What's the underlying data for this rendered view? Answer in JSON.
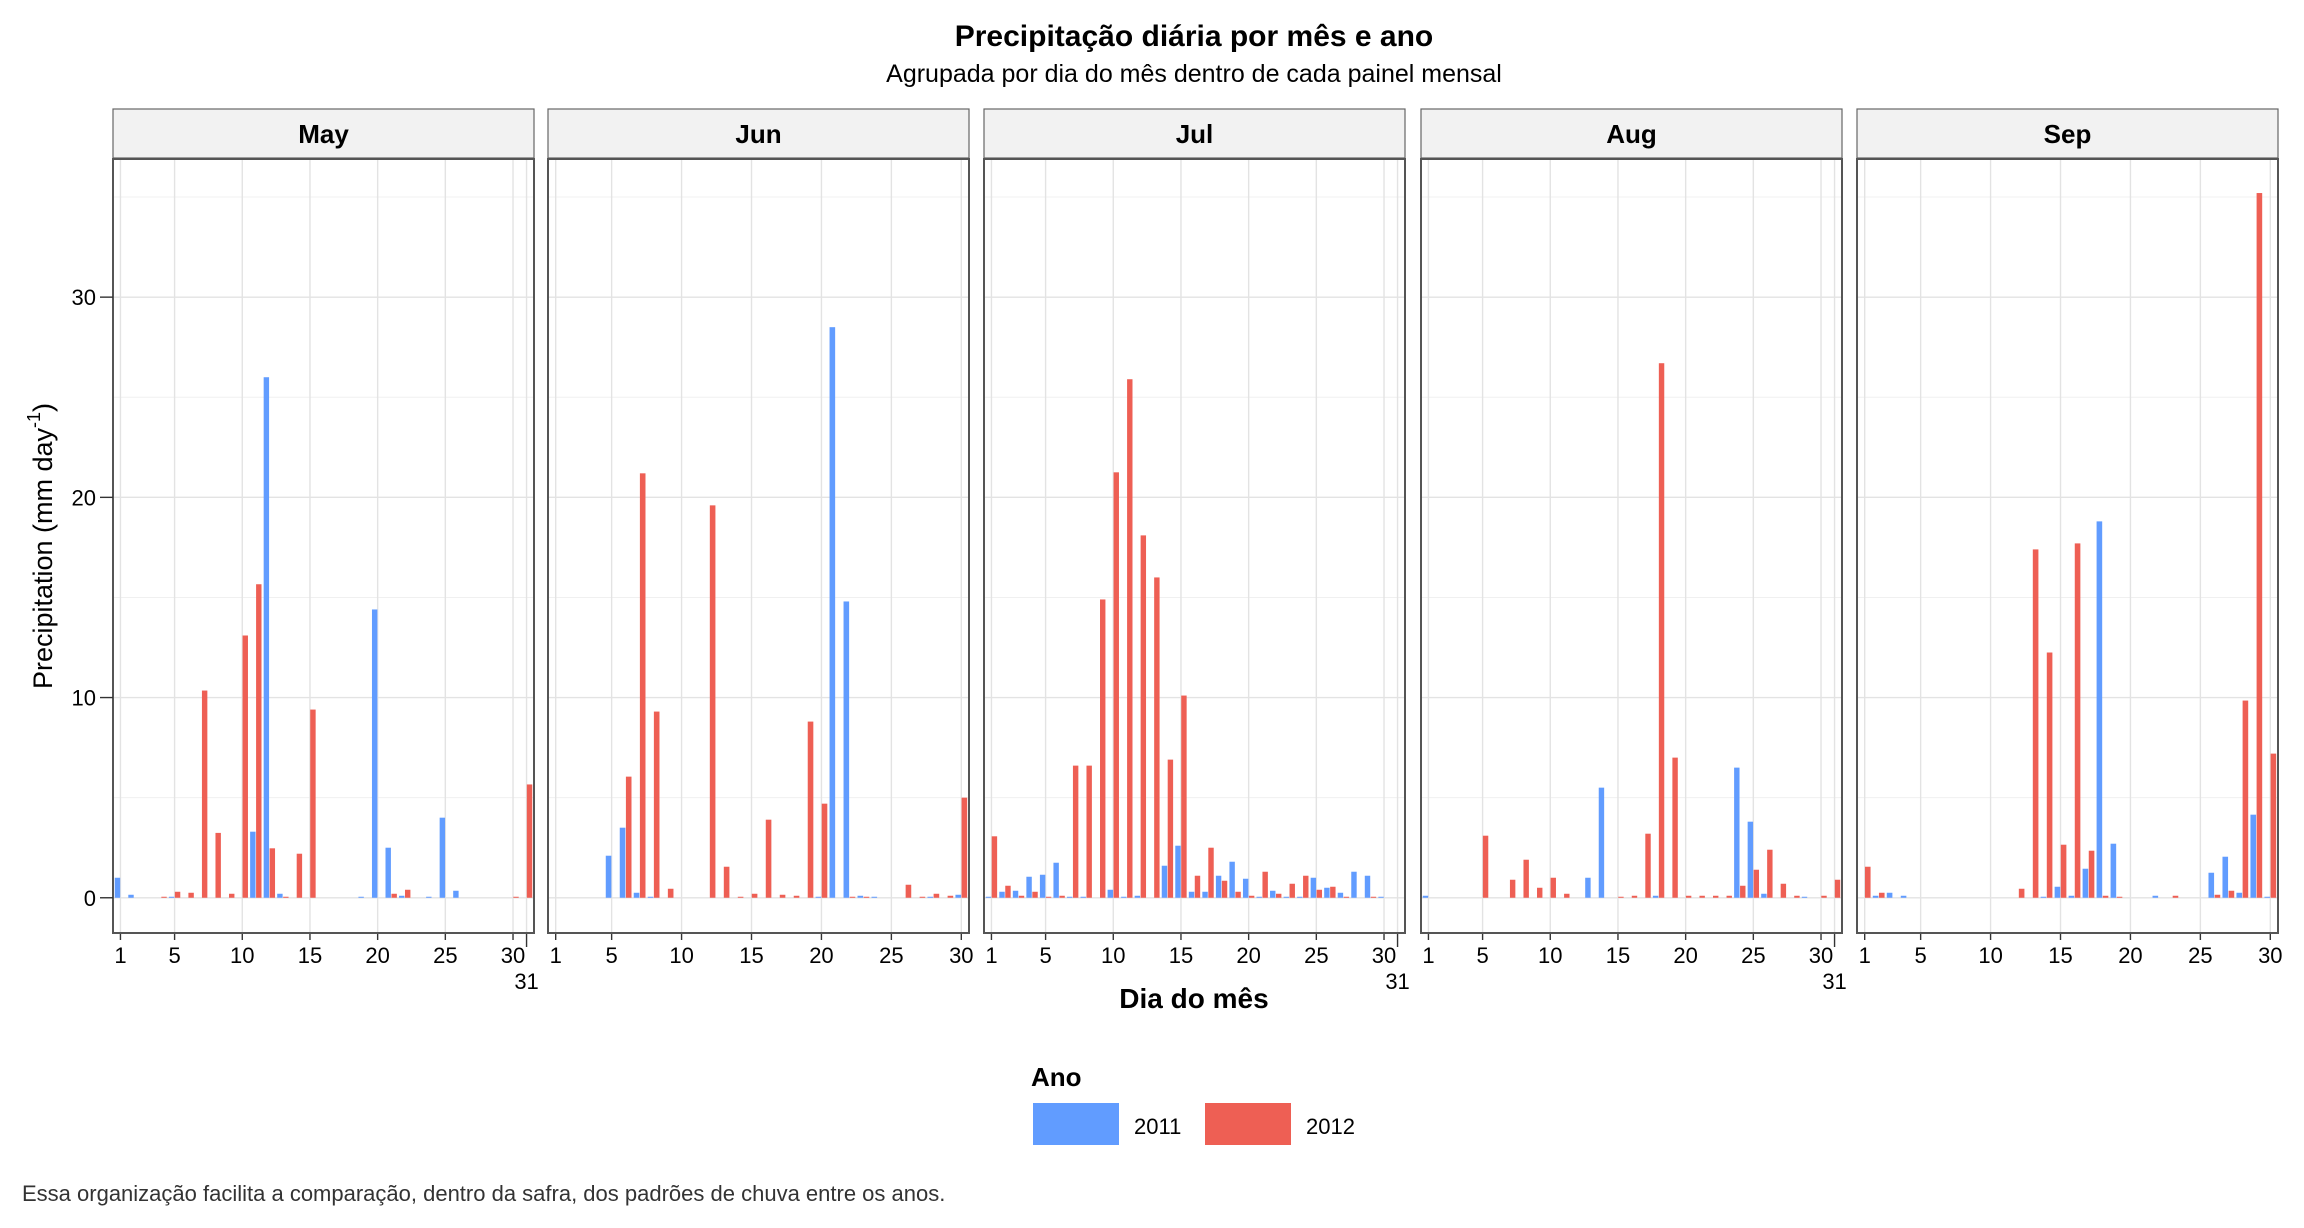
{
  "chart_data": {
    "type": "bar",
    "title": "Precipitação diária por mês e ano",
    "subtitle": "Agrupada por dia do mês dentro de cada painel mensal",
    "xlabel": "Dia do mês",
    "ylabel": {
      "main": "Precipitation (mm day",
      "sup": "-1",
      "end": ")"
    },
    "caption": "Essa organização facilita a comparação, dentro da safra, dos padrões de chuva entre os anos.",
    "ylim": [
      -1.76,
      36.9
    ],
    "y_ticks": [
      0,
      10,
      20,
      30
    ],
    "grid": true,
    "legend": {
      "title": "Ano",
      "position": "bottom",
      "entries": [
        "2011",
        "2012"
      ]
    },
    "colors": {
      "2011": "#619CFF",
      "2012": "#EE5F54"
    },
    "panels": [
      {
        "label": "May",
        "days": 31,
        "x_ticks": [
          1,
          5,
          10,
          15,
          20,
          25,
          30,
          31
        ],
        "series": [
          {
            "name": "2011",
            "values": [
              1.0,
              0.15,
              0,
              0,
              0.05,
              0,
              0,
              0,
              0,
              0,
              3.3,
              26.0,
              0.2,
              0,
              0,
              0,
              0,
              0,
              0.05,
              14.4,
              2.5,
              0.1,
              0,
              0.05,
              4.0,
              0.35,
              0,
              0,
              0,
              0,
              0
            ]
          },
          {
            "name": "2012",
            "values": [
              0,
              0,
              0,
              0.05,
              0.3,
              0.25,
              10.35,
              3.24,
              0.2,
              13.1,
              15.66,
              2.47,
              0.05,
              2.2,
              9.4,
              0,
              0,
              0,
              0,
              0,
              0.2,
              0.4,
              0,
              0,
              0,
              0,
              0,
              0,
              0,
              0.05,
              5.66
            ]
          }
        ]
      },
      {
        "label": "Jun",
        "days": 30,
        "x_ticks": [
          1,
          5,
          10,
          15,
          20,
          25,
          30
        ],
        "series": [
          {
            "name": "2011",
            "values": [
              0,
              0,
              0,
              0,
              2.1,
              3.5,
              0.25,
              0.05,
              0,
              0,
              0,
              0,
              0,
              0,
              0,
              0,
              0,
              0,
              0,
              0.05,
              28.5,
              14.8,
              0.1,
              0.05,
              0,
              0,
              0,
              0.05,
              0,
              0.15
            ]
          },
          {
            "name": "2012",
            "values": [
              0,
              0,
              0,
              0,
              0,
              6.05,
              21.2,
              9.3,
              0.45,
              0,
              0,
              19.6,
              1.55,
              0.05,
              0.2,
              3.9,
              0.15,
              0.1,
              8.8,
              4.7,
              0,
              0.05,
              0.05,
              0,
              0,
              0.65,
              0.05,
              0.2,
              0.1,
              5.0
            ]
          }
        ]
      },
      {
        "label": "Jul",
        "days": 31,
        "x_ticks": [
          1,
          5,
          10,
          15,
          20,
          25,
          30,
          31
        ],
        "series": [
          {
            "name": "2011",
            "values": [
              0.05,
              0.3,
              0.35,
              1.05,
              1.15,
              1.75,
              0.05,
              0.05,
              0,
              0.4,
              0.05,
              0.1,
              0,
              1.6,
              2.6,
              0.3,
              0.3,
              1.1,
              1.8,
              0.95,
              0.05,
              0.35,
              0.05,
              0.05,
              1.0,
              0.5,
              0.25,
              1.3,
              1.1,
              0.05,
              0
            ]
          },
          {
            "name": "2012",
            "values": [
              3.07,
              0.6,
              0.1,
              0.3,
              0.05,
              0.1,
              6.6,
              6.6,
              14.9,
              21.25,
              25.9,
              18.1,
              16.0,
              6.9,
              10.1,
              1.1,
              2.5,
              0.85,
              0.3,
              0.1,
              1.3,
              0.2,
              0.7,
              1.1,
              0.4,
              0.55,
              0.05,
              0,
              0.05,
              0,
              0
            ]
          }
        ]
      },
      {
        "label": "Aug",
        "days": 31,
        "x_ticks": [
          1,
          5,
          10,
          15,
          20,
          25,
          30,
          31
        ],
        "series": [
          {
            "name": "2011",
            "values": [
              0.1,
              0,
              0,
              0,
              0,
              0,
              0,
              0,
              0,
              0,
              0,
              0,
              1.0,
              5.5,
              0,
              0,
              0,
              0.1,
              0,
              0,
              0,
              0,
              0,
              6.5,
              3.8,
              0.2,
              0,
              0,
              0.05,
              0,
              0
            ]
          },
          {
            "name": "2012",
            "values": [
              0,
              0,
              0,
              0,
              3.1,
              0,
              0.9,
              1.9,
              0.5,
              1.0,
              0.2,
              0,
              0,
              0,
              0.05,
              0.1,
              3.2,
              26.7,
              7.0,
              0.1,
              0.1,
              0.1,
              0.1,
              0.6,
              1.4,
              2.4,
              0.7,
              0.1,
              0,
              0.1,
              0.9
            ]
          }
        ]
      },
      {
        "label": "Sep",
        "days": 30,
        "x_ticks": [
          1,
          5,
          10,
          15,
          20,
          25,
          30
        ],
        "series": [
          {
            "name": "2011",
            "values": [
              0,
              0.1,
              0.25,
              0.1,
              0,
              0,
              0,
              0,
              0,
              0,
              0,
              0,
              0,
              0.05,
              0.55,
              0.1,
              1.45,
              18.8,
              2.7,
              0,
              0,
              0.1,
              0,
              0,
              0,
              1.25,
              2.05,
              0.25,
              4.15,
              0.05
            ]
          },
          {
            "name": "2012",
            "values": [
              1.55,
              0.25,
              0,
              0,
              0,
              0,
              0,
              0,
              0,
              0,
              0,
              0.45,
              17.4,
              12.25,
              2.65,
              17.7,
              2.35,
              0.1,
              0.05,
              0,
              0,
              0,
              0.1,
              0,
              0,
              0.15,
              0.35,
              9.85,
              35.2,
              7.2
            ]
          }
        ]
      }
    ]
  }
}
